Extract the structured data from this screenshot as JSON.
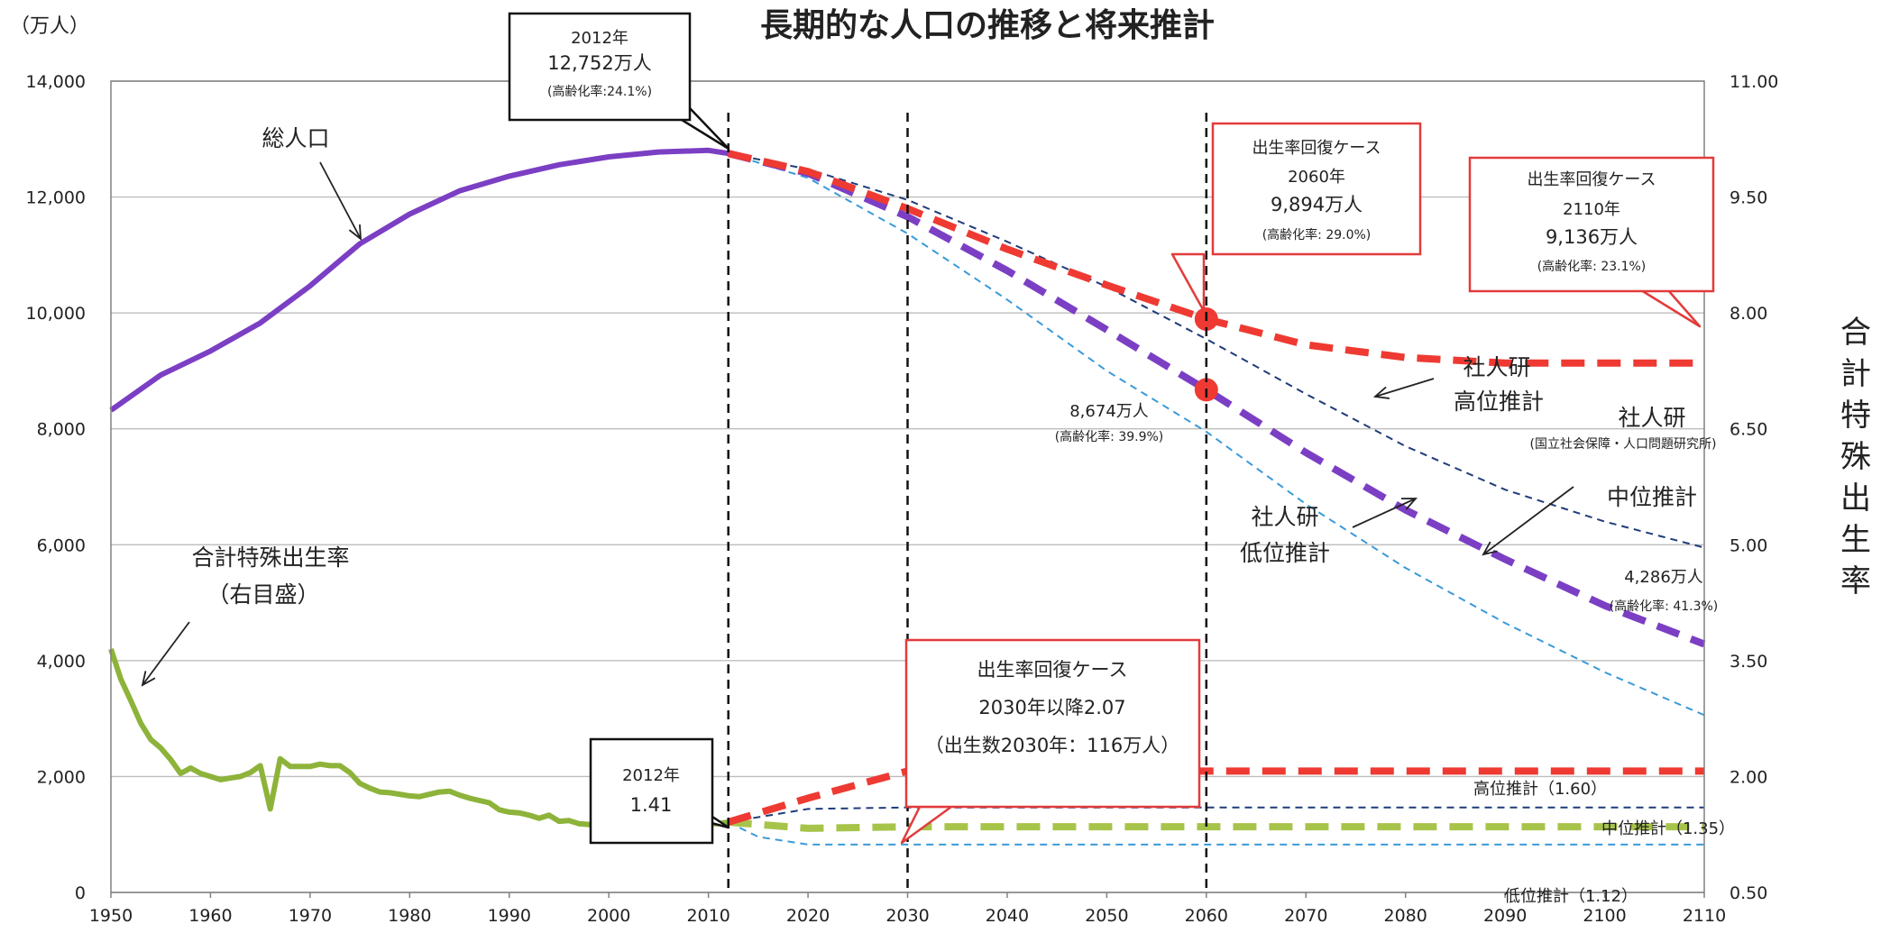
{
  "chart_data": {
    "type": "line",
    "title": "長期的な人口の推移と将来推計",
    "left_axis_unit": "（万人）",
    "right_axis_label": "合計特殊出生率",
    "xlim": [
      1950,
      2110
    ],
    "ylim_left": [
      0,
      14000
    ],
    "ylim_right": [
      0.5,
      11.0
    ],
    "x_ticks": [
      "1950",
      "1960",
      "1970",
      "1980",
      "1990",
      "2000",
      "2010",
      "2020",
      "2030",
      "2040",
      "2050",
      "2060",
      "2070",
      "2080",
      "2090",
      "2100",
      "2110"
    ],
    "y_ticks_left": [
      "0",
      "2,000",
      "4,000",
      "6,000",
      "8,000",
      "10,000",
      "12,000",
      "14,000"
    ],
    "y_ticks_right": [
      "0.50",
      "2.00",
      "3.50",
      "5.00",
      "6.50",
      "8.00",
      "9.50",
      "11.00"
    ],
    "grid": true,
    "series": [
      {
        "key": "pop_actual",
        "axis": "left",
        "style": "solid",
        "color": "#7b3fc4",
        "points": [
          [
            1950,
            8320
          ],
          [
            1955,
            8928
          ],
          [
            1960,
            9342
          ],
          [
            1965,
            9828
          ],
          [
            1970,
            10467
          ],
          [
            1975,
            11194
          ],
          [
            1980,
            11706
          ],
          [
            1985,
            12105
          ],
          [
            1990,
            12361
          ],
          [
            1995,
            12557
          ],
          [
            2000,
            12693
          ],
          [
            2005,
            12777
          ],
          [
            2010,
            12806
          ],
          [
            2012,
            12752
          ]
        ]
      },
      {
        "key": "pop_ipss_high",
        "axis": "left",
        "style": "thin-dash",
        "color": "#1f3c7a",
        "points": [
          [
            2012,
            12752
          ],
          [
            2020,
            12480
          ],
          [
            2030,
            11950
          ],
          [
            2040,
            11230
          ],
          [
            2050,
            10450
          ],
          [
            2060,
            9550
          ],
          [
            2070,
            8600
          ],
          [
            2080,
            7700
          ],
          [
            2090,
            6950
          ],
          [
            2100,
            6400
          ],
          [
            2110,
            5950
          ]
        ]
      },
      {
        "key": "pop_ipss_mid",
        "axis": "left",
        "style": "thick-dash",
        "color": "#7b3fc4",
        "points": [
          [
            2012,
            12752
          ],
          [
            2020,
            12410
          ],
          [
            2030,
            11660
          ],
          [
            2040,
            10730
          ],
          [
            2050,
            9710
          ],
          [
            2060,
            8674
          ],
          [
            2070,
            7590
          ],
          [
            2080,
            6600
          ],
          [
            2090,
            5750
          ],
          [
            2100,
            4950
          ],
          [
            2110,
            4286
          ]
        ]
      },
      {
        "key": "pop_ipss_low",
        "axis": "left",
        "style": "thin-dash",
        "color": "#3a9ad9",
        "points": [
          [
            2012,
            12752
          ],
          [
            2020,
            12330
          ],
          [
            2030,
            11370
          ],
          [
            2040,
            10230
          ],
          [
            2050,
            9000
          ],
          [
            2060,
            7950
          ],
          [
            2070,
            6700
          ],
          [
            2080,
            5600
          ],
          [
            2090,
            4650
          ],
          [
            2100,
            3800
          ],
          [
            2110,
            3060
          ]
        ]
      },
      {
        "key": "pop_recovery",
        "axis": "left",
        "style": "thick-dash",
        "color": "#ee3a32",
        "points": [
          [
            2012,
            12752
          ],
          [
            2020,
            12440
          ],
          [
            2030,
            11800
          ],
          [
            2040,
            11100
          ],
          [
            2050,
            10480
          ],
          [
            2060,
            9894
          ],
          [
            2070,
            9450
          ],
          [
            2080,
            9230
          ],
          [
            2090,
            9136
          ],
          [
            2100,
            9136
          ],
          [
            2110,
            9136
          ]
        ]
      },
      {
        "key": "tfr_actual",
        "axis": "right",
        "style": "solid",
        "color": "#8db33a",
        "points": [
          [
            1950,
            3.65
          ],
          [
            1951,
            3.26
          ],
          [
            1952,
            2.98
          ],
          [
            1953,
            2.69
          ],
          [
            1954,
            2.48
          ],
          [
            1955,
            2.37
          ],
          [
            1956,
            2.22
          ],
          [
            1957,
            2.04
          ],
          [
            1958,
            2.11
          ],
          [
            1959,
            2.04
          ],
          [
            1960,
            2.0
          ],
          [
            1961,
            1.96
          ],
          [
            1962,
            1.98
          ],
          [
            1963,
            2.0
          ],
          [
            1964,
            2.05
          ],
          [
            1965,
            2.14
          ],
          [
            1966,
            1.58
          ],
          [
            1967,
            2.23
          ],
          [
            1968,
            2.13
          ],
          [
            1969,
            2.13
          ],
          [
            1970,
            2.13
          ],
          [
            1971,
            2.16
          ],
          [
            1972,
            2.14
          ],
          [
            1973,
            2.14
          ],
          [
            1974,
            2.05
          ],
          [
            1975,
            1.91
          ],
          [
            1976,
            1.85
          ],
          [
            1977,
            1.8
          ],
          [
            1978,
            1.79
          ],
          [
            1979,
            1.77
          ],
          [
            1980,
            1.75
          ],
          [
            1981,
            1.74
          ],
          [
            1982,
            1.77
          ],
          [
            1983,
            1.8
          ],
          [
            1984,
            1.81
          ],
          [
            1985,
            1.76
          ],
          [
            1986,
            1.72
          ],
          [
            1987,
            1.69
          ],
          [
            1988,
            1.66
          ],
          [
            1989,
            1.57
          ],
          [
            1990,
            1.54
          ],
          [
            1991,
            1.53
          ],
          [
            1992,
            1.5
          ],
          [
            1993,
            1.46
          ],
          [
            1994,
            1.5
          ],
          [
            1995,
            1.42
          ],
          [
            1996,
            1.43
          ],
          [
            1997,
            1.39
          ],
          [
            1998,
            1.38
          ],
          [
            1999,
            1.34
          ],
          [
            2000,
            1.36
          ],
          [
            2001,
            1.33
          ],
          [
            2002,
            1.32
          ],
          [
            2003,
            1.29
          ],
          [
            2004,
            1.29
          ],
          [
            2005,
            1.26
          ],
          [
            2006,
            1.32
          ],
          [
            2007,
            1.34
          ],
          [
            2008,
            1.37
          ],
          [
            2009,
            1.37
          ],
          [
            2010,
            1.39
          ],
          [
            2011,
            1.39
          ],
          [
            2012,
            1.41
          ]
        ]
      },
      {
        "key": "tfr_high",
        "axis": "right",
        "style": "thin-dash",
        "color": "#1f3c7a",
        "points": [
          [
            2012,
            1.41
          ],
          [
            2020,
            1.58
          ],
          [
            2030,
            1.6
          ],
          [
            2110,
            1.6
          ]
        ]
      },
      {
        "key": "tfr_mid",
        "axis": "right",
        "style": "thick-dash",
        "color": "#a7c44a",
        "points": [
          [
            2012,
            1.41
          ],
          [
            2020,
            1.33
          ],
          [
            2030,
            1.35
          ],
          [
            2110,
            1.35
          ]
        ]
      },
      {
        "key": "tfr_low",
        "axis": "right",
        "style": "thin-dash",
        "color": "#3a9ad9",
        "points": [
          [
            2012,
            1.41
          ],
          [
            2015,
            1.22
          ],
          [
            2020,
            1.12
          ],
          [
            2030,
            1.12
          ],
          [
            2110,
            1.12
          ]
        ]
      },
      {
        "key": "tfr_recovery",
        "axis": "right",
        "style": "thick-dash",
        "color": "#ee3a32",
        "points": [
          [
            2012,
            1.41
          ],
          [
            2020,
            1.72
          ],
          [
            2030,
            2.07
          ],
          [
            2110,
            2.07
          ]
        ]
      }
    ],
    "markers": [
      {
        "x": 2060,
        "y": 9894,
        "axis": "left",
        "color": "#ee3a32"
      },
      {
        "x": 2060,
        "y": 8674,
        "axis": "left",
        "color": "#ee3a32"
      }
    ],
    "vlines": [
      2012,
      2030,
      2060
    ],
    "annotations": {
      "total_pop_label": "総人口",
      "tfr_label_1": "合計特殊出生率",
      "tfr_label_2": "（右目盛）",
      "callout_2012_pop": [
        "2012年",
        "12,752万人",
        "(高齢化率:24.1%)"
      ],
      "callout_2012_tfr": [
        "2012年",
        "1.41"
      ],
      "callout_recovery_2060": [
        "出生率回復ケース",
        "2060年",
        "9,894万人",
        "(高齢化率: 29.0%)"
      ],
      "callout_recovery_2110": [
        "出生率回復ケース",
        "2110年",
        "9,136万人",
        "(高齢化率: 23.1%)"
      ],
      "callout_recovery_tfr": [
        "出生率回復ケース",
        "2030年以降2.07",
        "（出生数2030年：116万人）"
      ],
      "mid_2060_value": [
        "8,674万人",
        "(高齢化率: 39.9%)"
      ],
      "mid_2110_value": [
        "4,286万人",
        "(高齢化率: 41.3%)"
      ],
      "ipss_high": [
        "社人研",
        "高位推計"
      ],
      "ipss_mid": [
        "社人研",
        "(国立社会保障・人口問題研究所)",
        "中位推計"
      ],
      "ipss_low": [
        "社人研",
        "低位推計"
      ],
      "tfr_high_label": "高位推計（1.60）",
      "tfr_mid_label": "中位推計（1.35）",
      "tfr_low_label": "低位推計（1.12）"
    }
  }
}
